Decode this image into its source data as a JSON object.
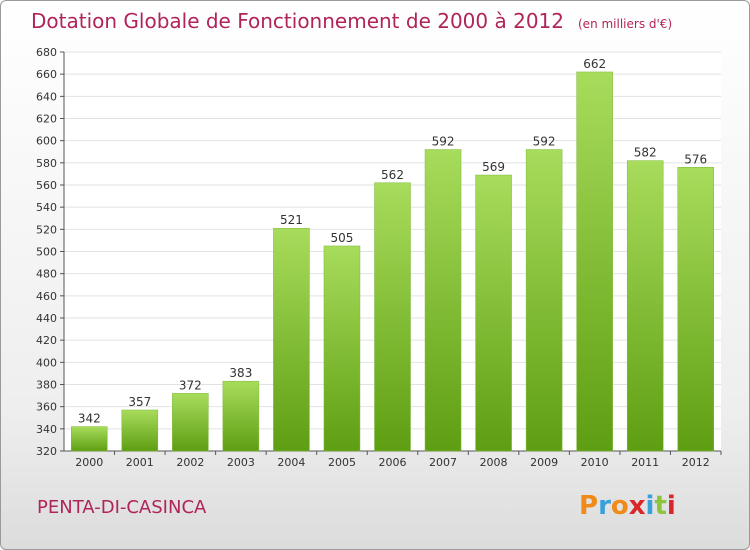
{
  "title": "Dotation Globale de Fonctionnement de 2000 à 2012",
  "subtitle": "(en milliers d'€)",
  "commune": "PENTA-DI-CASINCA",
  "logo": {
    "letters": [
      "P",
      "r",
      "o",
      "x",
      "i",
      "t",
      "i"
    ],
    "colors": [
      "#f08a18",
      "#3aa0dc",
      "#f08a18",
      "#d8262a",
      "#3aa0dc",
      "#8cc43c",
      "#d8262a"
    ]
  },
  "colors": {
    "bar_top": "#a8dc5c",
    "bar_bottom": "#5e9e12",
    "title": "#b0245a"
  },
  "chart_data": {
    "type": "bar",
    "title": "Dotation Globale de Fonctionnement de 2000 à 2012",
    "subtitle": "(en milliers d'€)",
    "xlabel": "",
    "ylabel": "",
    "categories": [
      "2000",
      "2001",
      "2002",
      "2003",
      "2004",
      "2005",
      "2006",
      "2007",
      "2008",
      "2009",
      "2010",
      "2011",
      "2012"
    ],
    "values": [
      342,
      357,
      372,
      383,
      521,
      505,
      562,
      592,
      569,
      592,
      662,
      582,
      576
    ],
    "ylim": [
      320,
      680
    ],
    "yticks": [
      320,
      340,
      360,
      380,
      400,
      420,
      440,
      460,
      480,
      500,
      520,
      540,
      560,
      580,
      600,
      620,
      640,
      660,
      680
    ],
    "grid": "horizontal",
    "legend": "none"
  }
}
